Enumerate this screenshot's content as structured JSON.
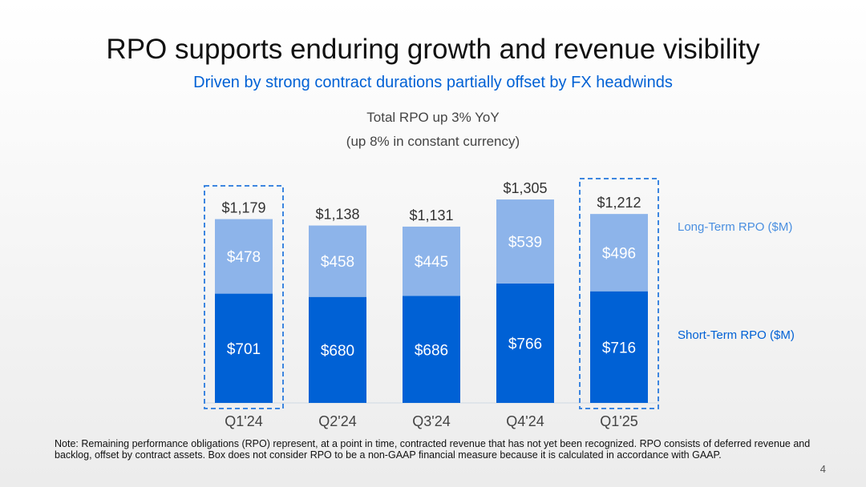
{
  "title": "RPO supports enduring growth and revenue visibility",
  "subtitle": "Driven by strong contract durations partially offset by FX headwinds",
  "notes": [
    "Total RPO up 3% YoY",
    "(up 8% in constant currency)"
  ],
  "footnote": "Note: Remaining performance obligations (RPO) represent, at a point in time, contracted revenue that has not yet been recognized. RPO consists of deferred revenue and backlog, offset by contract assets. Box does not consider RPO to be a non-GAAP financial measure because it is calculated in accordance with GAAP.",
  "page_number": "4",
  "chart_data": {
    "type": "bar",
    "stacked": true,
    "categories": [
      "Q1'24",
      "Q2'24",
      "Q3'24",
      "Q4'24",
      "Q1'25"
    ],
    "series": [
      {
        "name": "Short-Term RPO ($M)",
        "values": [
          701,
          680,
          686,
          766,
          716
        ],
        "color": "#0061D5"
      },
      {
        "name": "Long-Term RPO ($M)",
        "values": [
          478,
          458,
          445,
          539,
          496
        ],
        "color": "#8DB4EA"
      }
    ],
    "totals": [
      1179,
      1138,
      1131,
      1305,
      1212
    ],
    "highlighted": [
      "Q1'24",
      "Q1'25"
    ],
    "legend": "right",
    "grid": false
  }
}
